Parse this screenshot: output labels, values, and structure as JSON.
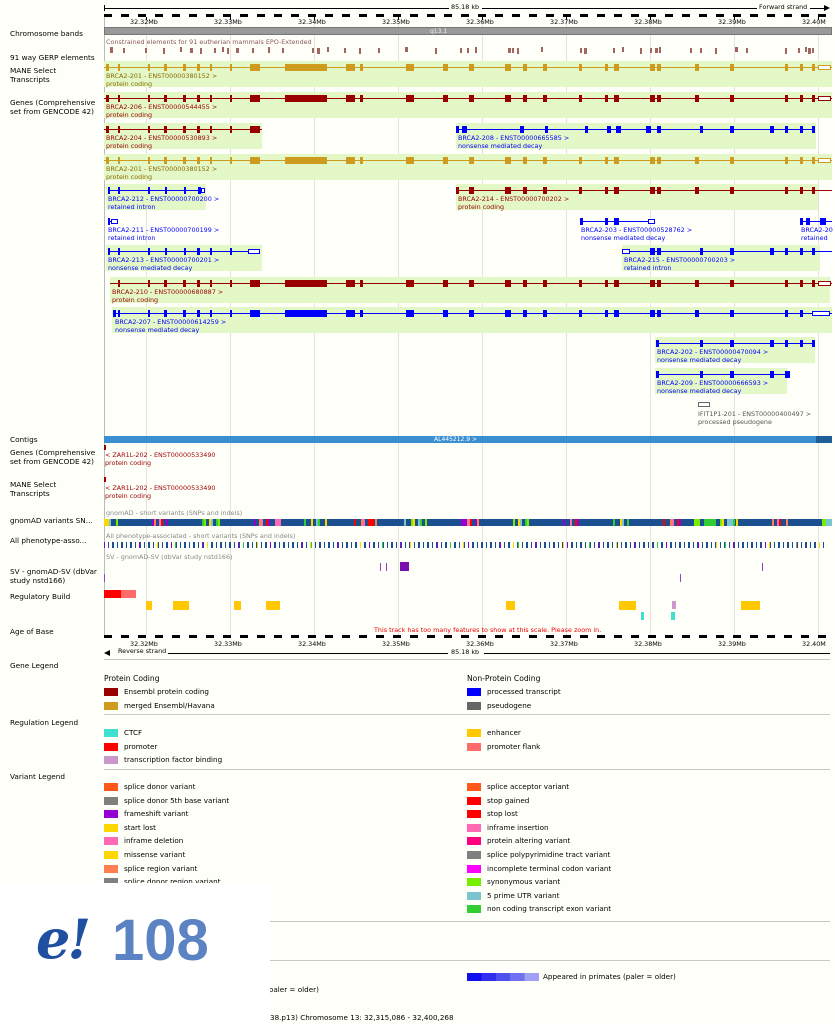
{
  "scale": {
    "span": "85.18 kb",
    "forward_strand": "Forward strand",
    "reverse_strand": "Reverse strand",
    "ticks": [
      "32.32Mb",
      "32.33Mb",
      "32.34Mb",
      "32.35Mb",
      "32.36Mb",
      "32.37Mb",
      "32.38Mb",
      "32.39Mb",
      "32.40M"
    ]
  },
  "track_labels": {
    "chromosome_bands": "Chromosome bands",
    "gerp": "91 way GERP elements",
    "mane_top": "MANE Select Transcripts",
    "genes_top": "Genes (Comprehensive set from GENCODE 42)",
    "contigs": "Contigs",
    "genes_bottom": "Genes (Comprehensive set from GENCODE 42)",
    "mane_bottom": "MANE Select Transcripts",
    "gnomad": "gnomAD variants SN...",
    "phenotype": "All phenotype-asso...",
    "sv": "SV - gnomAD-SV (dbVar study nstd166)",
    "regulatory": "Regulatory Build",
    "age": "Age of Base"
  },
  "band_label": "q13.1",
  "gerp_caption": "Constrained elements for 91 eutherian mammals EPO-Extended",
  "transcripts": [
    {
      "name": "BRCA2-201 - ENST00000380152 >",
      "biotype": "protein coding"
    },
    {
      "name": "BRCA2-206 - ENST00000544455 >",
      "biotype": "protein coding"
    },
    {
      "name": "BRCA2-204 - ENST00000530893 >",
      "biotype": "protein coding"
    },
    {
      "name": "BRCA2-208 - ENST00000665585 >",
      "biotype": "nonsense mediated decay"
    },
    {
      "name": "BRCA2-201 - ENST00000380152 >",
      "biotype": "protein coding"
    },
    {
      "name": "BRCA2-212 - ENST00000700200 >",
      "biotype": "retained intron"
    },
    {
      "name": "BRCA2-214 - ENST00000700202 >",
      "biotype": "protein coding"
    },
    {
      "name": "BRCA2-211 - ENST00000700199 >",
      "biotype": "retained intron"
    },
    {
      "name": "BRCA2-203 - ENST00000528762 >",
      "biotype": "nonsense mediated decay"
    },
    {
      "name": "BRCA2-20",
      "biotype": "retained"
    },
    {
      "name": "BRCA2-213 - ENST00000700201 >",
      "biotype": "nonsense mediated decay"
    },
    {
      "name": "BRCA2-215 - ENST00000700203 >",
      "biotype": "retained intron"
    },
    {
      "name": "BRCA2-210 - ENST00000680887 >",
      "biotype": "protein coding"
    },
    {
      "name": "BRCA2-207 - ENST00000614259 >",
      "biotype": "nonsense mediated decay"
    },
    {
      "name": "BRCA2-202 - ENST00000470094 >",
      "biotype": "nonsense mediated decay"
    },
    {
      "name": "BRCA2-209 - ENST00000666593 >",
      "biotype": "nonsense mediated decay"
    },
    {
      "name": "IFIT1P1-201 - ENST00000400497 >",
      "biotype": "processed pseudogene"
    }
  ],
  "contig_label": "AL445212.9 >",
  "reverse_genes": [
    {
      "name": "< ZAR1L-202 - ENST00000533490",
      "biotype": "protein coding"
    },
    {
      "name": "< ZAR1L-202 - ENST00000533490",
      "biotype": "protein coding"
    }
  ],
  "gnomad_caption": "gnomAD - short variants (SNPs and indels)",
  "phenotype_caption": "All phenotype-associated - short variants (SNPs and indels)",
  "sv_caption": "SV - gnomAD-SV (dbVar study nstd166)",
  "age_message": "This track has too many features to show at this scale. Please zoom in.",
  "legends": {
    "gene_title": "Gene Legend",
    "protein_coding": "Protein Coding",
    "non_protein_coding": "Non-Protein Coding",
    "gene_left": [
      {
        "label": "Ensembl protein coding",
        "color": "#9a0000"
      },
      {
        "label": "merged Ensembl/Havana",
        "color": "#cd9b1d"
      }
    ],
    "gene_right": [
      {
        "label": "processed transcript",
        "color": "#0000ff"
      },
      {
        "label": "pseudogene",
        "color": "#666666"
      }
    ],
    "regulation_title": "Regulation Legend",
    "reg_left": [
      {
        "label": "CTCF",
        "color": "#40e0d0"
      },
      {
        "label": "promoter",
        "color": "#ff0000"
      },
      {
        "label": "transcription factor binding",
        "color": "#cd96cd"
      }
    ],
    "reg_right": [
      {
        "label": "enhancer",
        "color": "#ffc800"
      },
      {
        "label": "promoter flank",
        "color": "#ff6a6a"
      }
    ],
    "variant_title": "Variant Legend",
    "var_left": [
      {
        "label": "splice donor variant",
        "color": "#ff581a"
      },
      {
        "label": "splice donor 5th base variant",
        "color": "#808080"
      },
      {
        "label": "frameshift variant",
        "color": "#9400d3"
      },
      {
        "label": "start lost",
        "color": "#ffd700"
      },
      {
        "label": "inframe deletion",
        "color": "#ff69b4"
      },
      {
        "label": "missense variant",
        "color": "#ffd700"
      },
      {
        "label": "splice region variant",
        "color": "#ff7f50"
      },
      {
        "label": "splice donor region variant",
        "color": "#808080"
      }
    ],
    "var_right": [
      {
        "label": "splice acceptor variant",
        "color": "#ff581a"
      },
      {
        "label": "stop gained",
        "color": "#ff0000"
      },
      {
        "label": "stop lost",
        "color": "#ff0000"
      },
      {
        "label": "inframe insertion",
        "color": "#ff69b4"
      },
      {
        "label": "protein altering variant",
        "color": "#ff0080"
      },
      {
        "label": "splice polypyrimidine tract variant",
        "color": "#808080"
      },
      {
        "label": "incomplete terminal codon variant",
        "color": "#ff00ff"
      },
      {
        "label": "synonymous variant",
        "color": "#76ee00"
      },
      {
        "label": "5 prime UTR variant",
        "color": "#7ac5cd"
      },
      {
        "label": "non coding transcript exon variant",
        "color": "#32cd32"
      }
    ],
    "primates_label": "Appeared in primates (paler = older)",
    "partial_left_label": "(paler = older)",
    "footer": "38.p13) Chromosome 13: 32,315,086 - 32,400,268"
  },
  "logo": {
    "symbol": "e!",
    "release": "108",
    "color_e": "#1e4fa1",
    "color_num": "#5b82c2"
  }
}
